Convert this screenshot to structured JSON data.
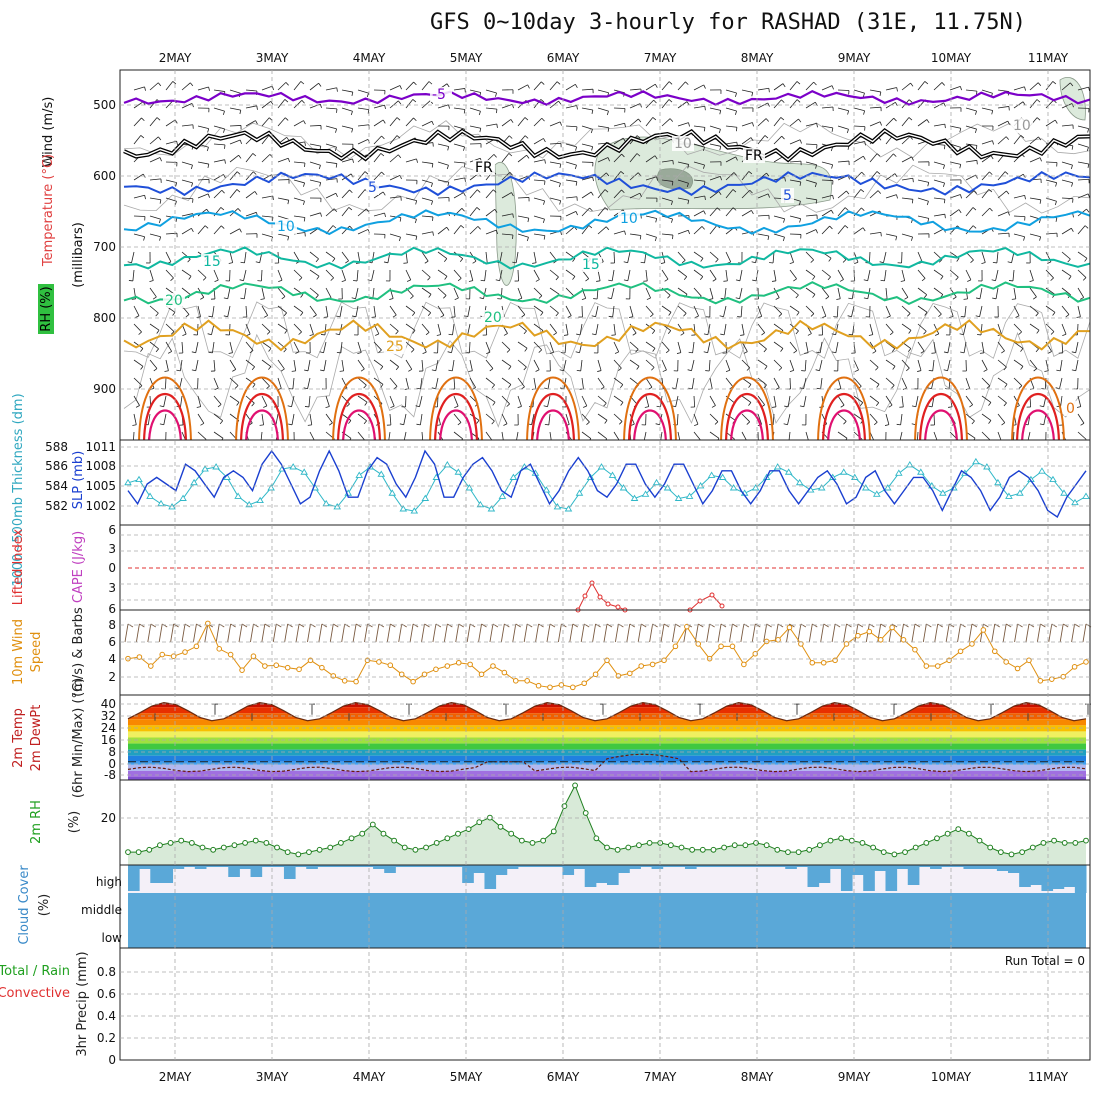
{
  "title": "GFS 0~10day 3-hourly for RASHAD (31E, 11.75N)",
  "dates": [
    "2MAY",
    "3MAY",
    "4MAY",
    "5MAY",
    "6MAY",
    "7MAY",
    "8MAY",
    "9MAY",
    "10MAY",
    "11MAY"
  ],
  "colors": {
    "grid": "#aaaaaa",
    "temp_contours": [
      "#7b00c8",
      "#000000",
      "#1f4fd8",
      "#0fa0e0",
      "#10b8a0",
      "#20c080",
      "#e0a020",
      "#e07010",
      "#e02020",
      "#e01070"
    ],
    "slp": "#1a3fd0",
    "thickness": "#30b8c8",
    "lifted": "#e03030",
    "cape": "#d040d0",
    "wind10m": "#e09010",
    "rh2m": "#208020",
    "rh_fill": "#d8ead8",
    "cloud": "#5aa8d8",
    "temp_bands": [
      "#8b0000",
      "#c81000",
      "#e83000",
      "#f06000",
      "#f88800",
      "#f8c000",
      "#f0f060",
      "#a0e040",
      "#40c840",
      "#20a0c0",
      "#2080e0",
      "#40a0f0",
      "#b0b8f0",
      "#a070e0",
      "#8050d0"
    ]
  },
  "panels": {
    "upper": {
      "ylabel_wind": "Wind (m/s)",
      "ylabel_temp": "Temperature (°C)",
      "ylabel_rh": "RH (%)",
      "ylabel_pres": "(millibars)",
      "yticks": [
        "500",
        "600",
        "700",
        "800",
        "900"
      ],
      "contour_labels": [
        {
          "text": "-5",
          "color": "#7b00c8"
        },
        {
          "text": "FR",
          "color": "#000000"
        },
        {
          "text": "FR",
          "color": "#000000"
        },
        {
          "text": "5",
          "color": "#1f4fd8"
        },
        {
          "text": "5",
          "color": "#1f4fd8"
        },
        {
          "text": "10",
          "color": "#0fa0e0"
        },
        {
          "text": "10",
          "color": "#0fa0e0"
        },
        {
          "text": "15",
          "color": "#10b8a0"
        },
        {
          "text": "15",
          "color": "#10b8a0"
        },
        {
          "text": "20",
          "color": "#20c080"
        },
        {
          "text": "20",
          "color": "#20c080"
        },
        {
          "text": "25",
          "color": "#e0a020"
        },
        {
          "text": "10",
          "color": "#999999"
        },
        {
          "text": "10",
          "color": "#999999"
        },
        {
          "text": "0",
          "color": "#e07010"
        }
      ]
    },
    "slp": {
      "ylabel_thick": "1000~500mb Thickness (dm)",
      "ylabel_slp": "SLP (mb)",
      "yticks_left": [
        "588",
        "586",
        "584",
        "582"
      ],
      "yticks_right": [
        "1011",
        "1008",
        "1005",
        "1002"
      ]
    },
    "cape": {
      "ylabel_li": "Lifted Index",
      "ylabel_cape": "CAPE (J/kg)",
      "yticks": [
        "6",
        "3",
        "0",
        "3",
        "6"
      ]
    },
    "wind": {
      "ylabel1": "10m Wind",
      "ylabel2": "Speed",
      "ylabel3": "(m/s) & Barbs",
      "yticks": [
        "8",
        "6",
        "4",
        "2"
      ]
    },
    "temp2m": {
      "ylabel1": "2m Temp",
      "ylabel2": "2m DewPt",
      "ylabel3": "(6hr Min/Max) (°C)",
      "yticks": [
        "40",
        "32",
        "24",
        "16",
        "8",
        "0",
        "-8"
      ]
    },
    "rh2m": {
      "ylabel1": "2m RH",
      "ylabel2": "(%)",
      "yticks": [
        "20"
      ]
    },
    "cloud": {
      "ylabel1": "Cloud Cover",
      "ylabel2": "(%)",
      "levels": [
        "high",
        "middle",
        "low"
      ]
    },
    "precip": {
      "ylabel1": "Total / Rain",
      "ylabel2": "Convective",
      "ylabel3": "3hr Precip (mm)",
      "yticks": [
        "0.8",
        "0.6",
        "0.4",
        "0.2",
        "0"
      ],
      "run_total": "Run Total = 0"
    }
  },
  "chart_data": {
    "type": "line",
    "x_dates": [
      "2MAY",
      "3MAY",
      "4MAY",
      "5MAY",
      "6MAY",
      "7MAY",
      "8MAY",
      "9MAY",
      "10MAY",
      "11MAY"
    ],
    "slp_mb": [
      1005,
      1003,
      1006,
      1007,
      1006,
      1005,
      1009,
      1008,
      1006,
      1004,
      1007,
      1008,
      1007,
      1005,
      1009,
      1011,
      1009,
      1006,
      1003,
      1004,
      1008,
      1011,
      1008,
      1004,
      1004,
      1008,
      1010,
      1009,
      1006,
      1004,
      1007,
      1011,
      1009,
      1004,
      1004,
      1007,
      1009,
      1010,
      1008,
      1005,
      1004,
      1008,
      1009,
      1006,
      1003,
      1005,
      1008,
      1010,
      1008,
      1005,
      1004,
      1006,
      1009,
      1009,
      1006,
      1004,
      1006,
      1009,
      1009,
      1006,
      1003,
      1005,
      1008,
      1008,
      1005,
      1003,
      1005,
      1008,
      1008,
      1005,
      1003,
      1005,
      1007,
      1008,
      1006,
      1003,
      1004,
      1007,
      1008,
      1005,
      1003,
      1005,
      1007,
      1007,
      1005,
      1002,
      1005,
      1008,
      1007,
      1005,
      1002,
      1004,
      1007,
      1008,
      1007,
      1005,
      1002,
      1001,
      1004,
      1006,
      1008
    ],
    "thickness_dm": [
      584.5,
      584.8,
      583.2,
      582.5,
      582.2,
      583,
      584.5,
      585.8,
      586,
      585,
      583.2,
      582.4,
      582.8,
      584,
      585.8,
      586,
      585.5,
      584,
      582.5,
      582.2,
      583.5,
      585.2,
      586,
      585.3,
      583.5,
      582,
      581.8,
      583,
      585,
      586.2,
      585.5,
      584,
      582.4,
      582,
      583.2,
      585,
      586,
      585.4,
      583.8,
      582.2,
      582,
      583.5,
      585,
      586,
      585.2,
      584,
      583,
      583.4,
      584.5,
      584,
      583,
      583.2,
      584.2,
      585.2,
      585,
      584,
      583.5,
      584,
      585,
      586,
      585.5,
      584.5,
      583.8,
      584,
      585,
      585.5,
      585,
      584,
      583.4,
      584,
      585.4,
      586.2,
      585.5,
      584.2,
      583.5,
      584,
      585.4,
      586.5,
      586,
      584.5,
      583.2,
      583.5,
      584.8,
      585.6,
      584.8,
      583.5,
      582.6,
      583.2
    ],
    "wind10m_ms": [
      4.7,
      4.9,
      3.8,
      5.2,
      5.0,
      5.5,
      6.2,
      9.0,
      5.9,
      5.2,
      3.3,
      5.0,
      3.8,
      3.9,
      3.6,
      3.4,
      4.5,
      3.6,
      2.6,
      2.0,
      1.9,
      4.5,
      4.3,
      3.9,
      2.8,
      1.9,
      2.8,
      3.4,
      3.8,
      4.2,
      4.0,
      2.8,
      3.8,
      3.0,
      2.0,
      2.0,
      1.4,
      1.2,
      1.5,
      1.2,
      1.7,
      2.8,
      4.5,
      2.6,
      2.9,
      3.8,
      4.0,
      4.5,
      6.2,
      8.6,
      6.5,
      4.7,
      6.2,
      6.2,
      4.0,
      5.3,
      6.8,
      7.0,
      8.5,
      6.5,
      4.2,
      4.2,
      4.5,
      6.5,
      7.5,
      8.0,
      7.0,
      8.5,
      7.0,
      5.8,
      3.8,
      3.8,
      4.5,
      5.6,
      6.5,
      8.2,
      5.6,
      4.3,
      3.5,
      4.5,
      2.0,
      2.2,
      2.5,
      3.7,
      4.3
    ],
    "rh2m_pct": [
      3,
      3,
      4,
      6,
      7,
      8,
      7,
      5,
      4,
      5,
      6,
      7,
      8,
      7,
      5,
      3,
      2,
      3,
      4,
      5,
      7,
      9,
      11,
      15,
      11,
      8,
      5,
      4,
      5,
      7,
      9,
      11,
      13,
      16,
      18,
      14,
      11,
      8,
      7,
      8,
      12,
      23,
      32,
      20,
      9,
      5,
      4,
      5,
      6,
      7,
      7,
      6,
      5,
      4,
      4,
      4,
      5,
      6,
      6,
      7,
      6,
      4,
      3,
      3,
      4,
      6,
      8,
      9,
      8,
      7,
      5,
      3,
      2,
      3,
      5,
      7,
      9,
      11,
      13,
      11,
      8,
      5,
      3,
      2,
      3,
      5,
      7,
      8,
      7,
      7,
      8
    ],
    "cape_spikes": [
      {
        "x_date": "6MAY",
        "value": "small"
      },
      {
        "x_date": "7MAY",
        "value": "small"
      }
    ],
    "precip_mm": [],
    "run_total_mm": 0
  }
}
